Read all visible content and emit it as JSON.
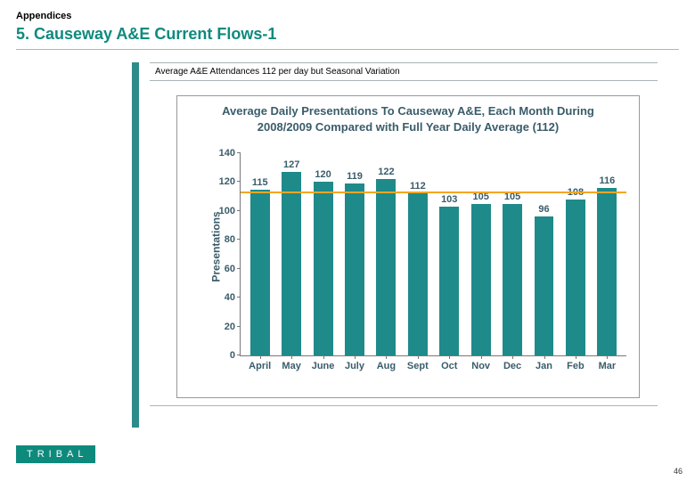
{
  "header": {
    "section_label": "Appendices",
    "title": "5. Causeway A&E Current Flows-1",
    "title_color": "#0e8a7d"
  },
  "subtitle": "Average A&E Attendances 112 per day but Seasonal Variation",
  "chart": {
    "type": "bar",
    "title": "Average Daily Presentations To Causeway A&E, Each Month During 2008/2009 Compared with Full Year Daily Average (112)",
    "ylabel": "Presentations",
    "ylim": [
      0,
      140
    ],
    "yticks": [
      0,
      20,
      40,
      60,
      80,
      100,
      120,
      140
    ],
    "categories": [
      "April",
      "May",
      "June",
      "July",
      "Aug",
      "Sept",
      "Oct",
      "Nov",
      "Dec",
      "Jan",
      "Feb",
      "Mar"
    ],
    "values": [
      115,
      127,
      120,
      119,
      122,
      112,
      103,
      105,
      105,
      96,
      108,
      116
    ],
    "bar_color": "#1f8a8a",
    "avg_line_value": 112,
    "avg_line_color": "#f5a623",
    "axis_text_color": "#3a5c6a",
    "title_color": "#3a5c6a",
    "background_color": "#ffffff",
    "border_color": "#999999"
  },
  "footer": {
    "logo_text": "TRIBAL",
    "logo_bg": "#0e8a7d",
    "page_number": "46"
  }
}
